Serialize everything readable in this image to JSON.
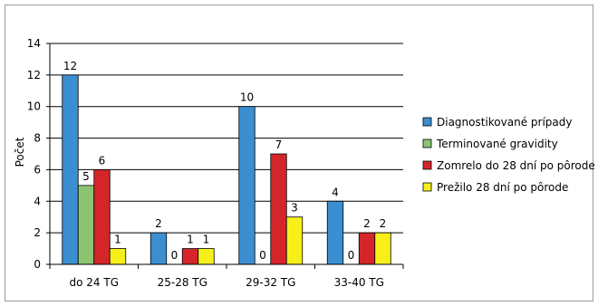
{
  "chart_data": {
    "type": "bar",
    "title": "",
    "xlabel": "",
    "ylabel": "Počet",
    "ylim": [
      0,
      14
    ],
    "yticks": [
      0,
      2,
      4,
      6,
      8,
      10,
      12,
      14
    ],
    "grid": true,
    "legend_position": "right",
    "categories": [
      "do 24 TG",
      "25-28 TG",
      "29-32 TG",
      "33-40 TG"
    ],
    "series": [
      {
        "name": "Diagnostikované prípady",
        "color": "#3b8ed0",
        "values": [
          12,
          2,
          10,
          4
        ]
      },
      {
        "name": "Terminované gravidity",
        "color": "#8cc472",
        "values": [
          5,
          0,
          0,
          0
        ]
      },
      {
        "name": "Zomrelo do 28 dní po pôrode",
        "color": "#d4252b",
        "values": [
          6,
          1,
          7,
          2
        ]
      },
      {
        "name": "Prežilo 28 dní po pôrode",
        "color": "#f7ef1a",
        "values": [
          1,
          1,
          3,
          2
        ]
      }
    ]
  }
}
